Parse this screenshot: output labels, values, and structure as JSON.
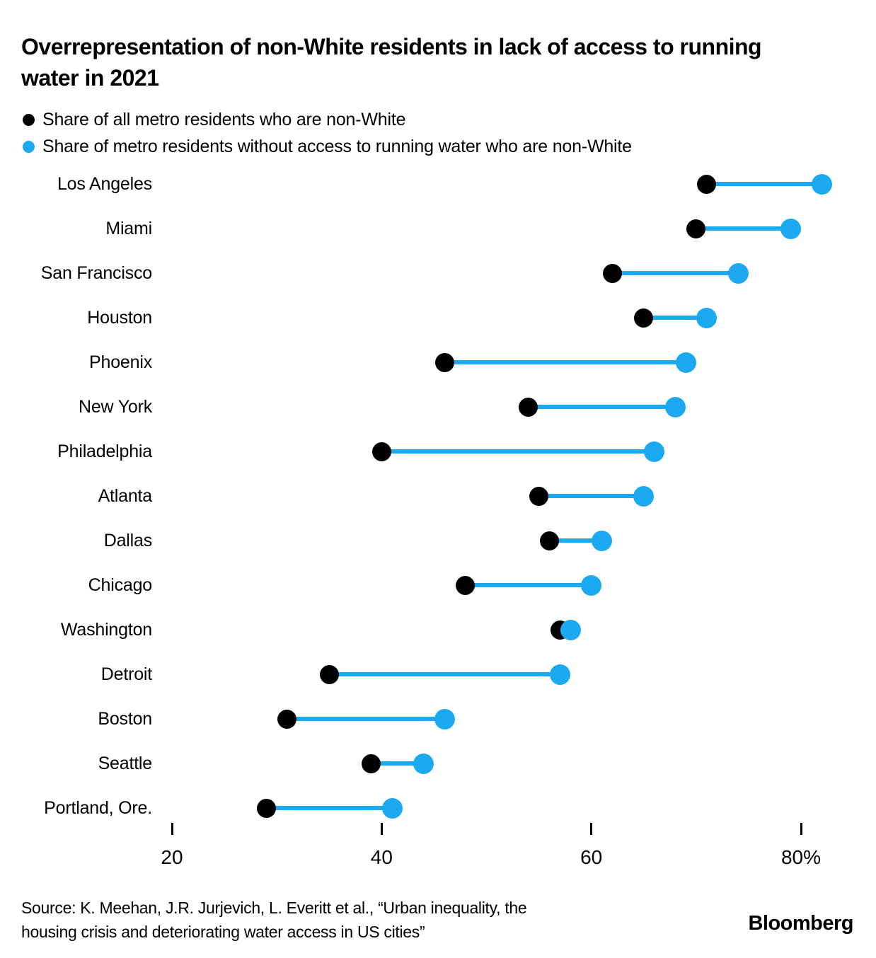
{
  "title": "Overrepresentation of non-White residents in lack of access to running water in 2021",
  "legend": [
    {
      "label": "Share of all metro residents who are non-White",
      "color": "#000000"
    },
    {
      "label": "Share of metro residents without access to running water who are non-White",
      "color": "#1BA9F2"
    }
  ],
  "chart_data": {
    "type": "dumbbell",
    "categories": [
      "Los Angeles",
      "Miami",
      "San Francisco",
      "Houston",
      "Phoenix",
      "New York",
      "Philadelphia",
      "Atlanta",
      "Dallas",
      "Chicago",
      "Washington",
      "Detroit",
      "Boston",
      "Seattle",
      "Portland, Ore."
    ],
    "series": [
      {
        "name": "Share of all metro residents who are non-White",
        "color": "#000000",
        "values": [
          71,
          70,
          62,
          65,
          46,
          54,
          40,
          55,
          56,
          48,
          57,
          35,
          31,
          39,
          29
        ]
      },
      {
        "name": "Share of metro residents without access to running water who are non-White",
        "color": "#1BA9F2",
        "values": [
          82,
          79,
          74,
          71,
          69,
          68,
          66,
          65,
          61,
          60,
          58,
          57,
          46,
          44,
          41
        ]
      }
    ],
    "x_axis": {
      "ticks": [
        20,
        40,
        60,
        80
      ],
      "tick_labels": [
        "20",
        "40",
        "60",
        "80%"
      ],
      "range": [
        20,
        80
      ],
      "unit": "percent"
    },
    "legend_position": "top-left",
    "grid": false
  },
  "source": {
    "line1": "Source: K. Meehan, J.R. Jurjevich, L. Everitt et al., “Urban inequality, the",
    "line2": "housing crisis and deteriorating water access in US cities”"
  },
  "brand": "Bloomberg"
}
